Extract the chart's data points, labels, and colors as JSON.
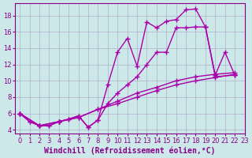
{
  "title": "",
  "xlabel": "Windchill (Refroidissement éolien,°C)",
  "ylabel": "",
  "xlim": [
    -0.5,
    23
  ],
  "ylim": [
    3.5,
    19.5
  ],
  "yticks": [
    4,
    6,
    8,
    10,
    12,
    14,
    16,
    18
  ],
  "xticks": [
    0,
    1,
    2,
    3,
    4,
    5,
    6,
    7,
    8,
    9,
    10,
    11,
    12,
    13,
    14,
    15,
    16,
    17,
    18,
    19,
    20,
    21,
    22,
    23
  ],
  "bg_color": "#cce8e8",
  "grid_color": "#b0b0cc",
  "line_color": "#aa00aa",
  "lines": [
    {
      "x": [
        0,
        1,
        2,
        3,
        4,
        5,
        6,
        7,
        8,
        9,
        10,
        11,
        12,
        13,
        14,
        15,
        16,
        17,
        18,
        19,
        20,
        22
      ],
      "y": [
        6.0,
        5.0,
        4.5,
        4.5,
        5.0,
        5.3,
        5.7,
        4.3,
        5.2,
        9.5,
        13.5,
        15.2,
        11.8,
        17.2,
        16.5,
        17.3,
        17.5,
        18.7,
        18.8,
        16.6,
        10.5,
        10.7
      ]
    },
    {
      "x": [
        0,
        1,
        2,
        3,
        4,
        5,
        6,
        7,
        8,
        9,
        10,
        11,
        12,
        13,
        14,
        15,
        16,
        17,
        18,
        19,
        20,
        21,
        22
      ],
      "y": [
        6.0,
        5.0,
        4.5,
        4.5,
        5.0,
        5.3,
        5.7,
        4.3,
        5.2,
        7.2,
        8.5,
        9.5,
        10.5,
        12.0,
        13.5,
        13.5,
        16.5,
        16.5,
        16.6,
        16.6,
        10.7,
        13.5,
        10.7
      ]
    },
    {
      "x": [
        0,
        2,
        4,
        6,
        8,
        10,
        12,
        14,
        16,
        18,
        20,
        22
      ],
      "y": [
        6.0,
        4.5,
        5.0,
        5.5,
        6.5,
        7.2,
        8.0,
        8.8,
        9.5,
        10.0,
        10.4,
        10.8
      ]
    },
    {
      "x": [
        0,
        2,
        4,
        6,
        8,
        10,
        12,
        14,
        16,
        18,
        20,
        22
      ],
      "y": [
        6.0,
        4.5,
        5.0,
        5.5,
        6.5,
        7.5,
        8.5,
        9.2,
        10.0,
        10.5,
        10.8,
        11.0
      ]
    }
  ],
  "marker": "+",
  "markersize": 5,
  "linewidth": 1.0,
  "xlabel_fontsize": 7,
  "tick_fontsize": 6,
  "tick_color": "#880088",
  "label_color": "#880088"
}
